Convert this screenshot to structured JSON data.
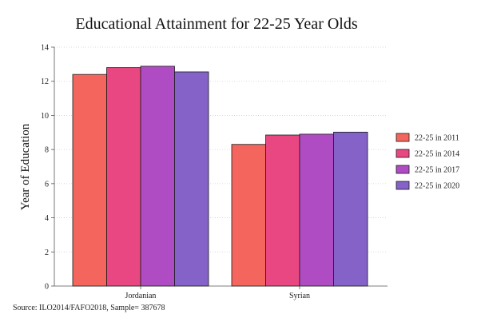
{
  "chart_data": {
    "type": "bar",
    "title": "Educational Attainment for 22-25 Year Olds",
    "xlabel": "",
    "ylabel": "Year of Education",
    "ylim": [
      0,
      14
    ],
    "yticks": [
      0,
      2,
      4,
      6,
      8,
      10,
      12,
      14
    ],
    "categories": [
      "Jordanian",
      "Syrian"
    ],
    "series": [
      {
        "name": "22-25 in 2011",
        "color": "#f4665d",
        "values": [
          12.4,
          8.3
        ]
      },
      {
        "name": "22-25 in 2014",
        "color": "#e94782",
        "values": [
          12.8,
          8.85
        ]
      },
      {
        "name": "22-25 in 2017",
        "color": "#b04cc3",
        "values": [
          12.88,
          8.9
        ]
      },
      {
        "name": "22-25 in 2020",
        "color": "#8462c8",
        "values": [
          12.55,
          9.02
        ]
      }
    ],
    "grid": true,
    "legend_position": "right",
    "source": "Source: ILO2014/FAFO2018, Sample= 387678"
  }
}
